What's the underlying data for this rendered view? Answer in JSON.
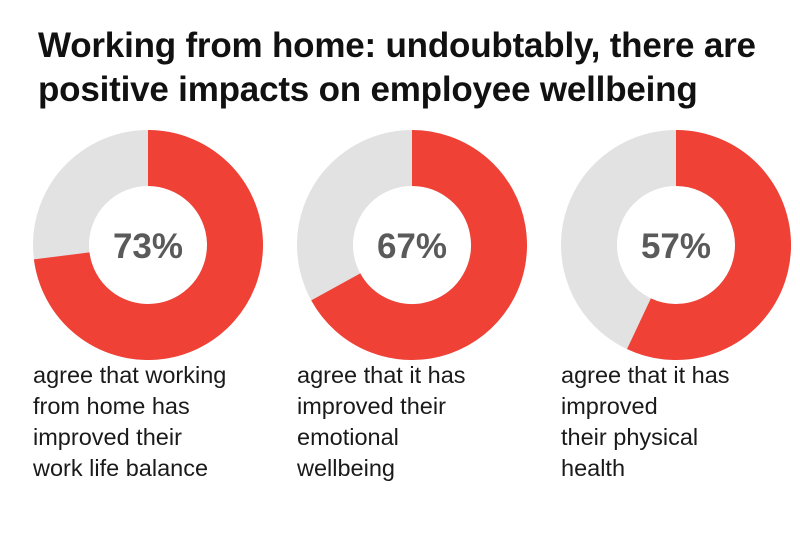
{
  "title_lines": [
    "Working from home: undoubtably, there are",
    "positive impacts on employee wellbeing"
  ],
  "colors": {
    "filled": "#ef4136",
    "remainder": "#e2e2e2",
    "percent_text": "#5a5a5a"
  },
  "chart_data": [
    {
      "type": "pie",
      "variant": "donut",
      "value": 73,
      "label": "73%",
      "caption_lines": [
        "agree that working",
        "from home has",
        "improved their",
        "work life balance"
      ]
    },
    {
      "type": "pie",
      "variant": "donut",
      "value": 67,
      "label": "67%",
      "caption_lines": [
        "agree that it has",
        "improved their",
        "emotional",
        "wellbeing"
      ]
    },
    {
      "type": "pie",
      "variant": "donut",
      "value": 57,
      "label": "57%",
      "caption_lines": [
        "agree that it has",
        "improved",
        "their physical",
        "health"
      ]
    }
  ]
}
